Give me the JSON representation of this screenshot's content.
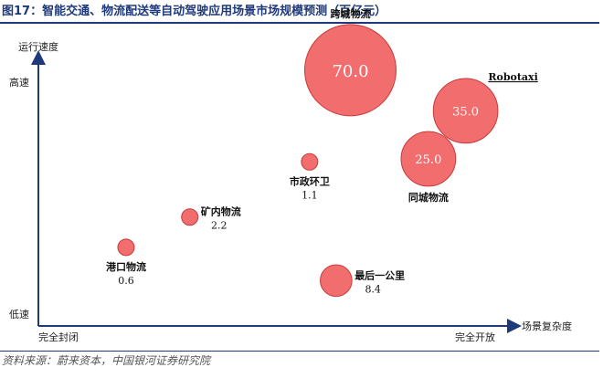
{
  "header": {
    "title": "图17：智能交通、物流配送等自动驾驶应用场景市场规模预测（百亿元）"
  },
  "footer": {
    "source": "资料来源：蔚来资本，中国银河证券研究院"
  },
  "colors": {
    "bubble_fill": "#f26d6d",
    "bubble_stroke": "#c83a3a",
    "axis": "#1f3a7a",
    "title": "#1f3a7a"
  },
  "chart_data": {
    "type": "bubble",
    "title": "",
    "xlabel": "场景复杂度",
    "ylabel": "运行速度",
    "x_ticks": [
      {
        "label": "完全封闭",
        "value": 0
      },
      {
        "label": "完全开放",
        "value": 1
      }
    ],
    "y_ticks": [
      {
        "label": "低速",
        "value": 0
      },
      {
        "label": "高速",
        "value": 1
      }
    ],
    "xlim": [
      0,
      1
    ],
    "ylim": [
      0,
      1
    ],
    "grid": false,
    "legend": "none",
    "series": [
      {
        "name": "港口物流",
        "x": 0.172,
        "y": 0.265,
        "size": 0.6,
        "value_label": "0.6",
        "label_position": "below"
      },
      {
        "name": "矿内物流",
        "x": 0.297,
        "y": 0.367,
        "size": 2.2,
        "value_label": "2.2",
        "label_position": "right"
      },
      {
        "name": "市政环卫",
        "x": 0.532,
        "y": 0.553,
        "size": 1.1,
        "value_label": "1.1",
        "label_position": "below"
      },
      {
        "name": "最后一公里",
        "x": 0.584,
        "y": 0.153,
        "size": 8.4,
        "value_label": "8.4",
        "label_position": "right"
      },
      {
        "name": "跨城物流",
        "x": 0.612,
        "y": 0.862,
        "size": 70.0,
        "value_label": "70.0",
        "label_position": "above"
      },
      {
        "name": "同城物流",
        "x": 0.765,
        "y": 0.563,
        "size": 25.0,
        "value_label": "25.0",
        "label_position": "below"
      },
      {
        "name": "Robotaxi",
        "x": 0.838,
        "y": 0.725,
        "size": 35.0,
        "value_label": "35.0",
        "label_position": "above-right"
      }
    ]
  }
}
